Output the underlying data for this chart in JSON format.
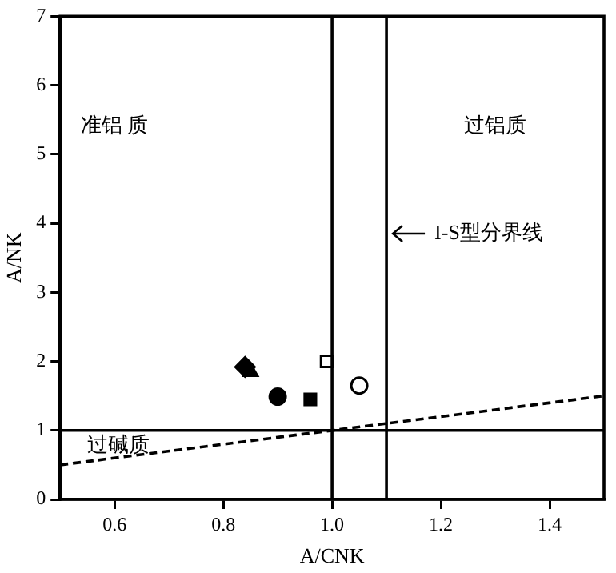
{
  "chart_data": {
    "type": "scatter",
    "xlabel": "A/CNK",
    "ylabel": "A/NK",
    "xlim": [
      0.5,
      1.5
    ],
    "xticks": [
      {
        "value": 0.6,
        "label": "0.6"
      },
      {
        "value": 0.8,
        "label": "0.8"
      },
      {
        "value": 1.0,
        "label": "1.0"
      },
      {
        "value": 1.2,
        "label": "1.2"
      },
      {
        "value": 1.4,
        "label": "1.4"
      }
    ],
    "ylim": [
      0,
      7
    ],
    "yticks": [
      0,
      1,
      2,
      3,
      4,
      5,
      6,
      7
    ],
    "grid": false,
    "legend": false,
    "series": [
      {
        "type": "scatter",
        "marker": "diamond",
        "color": "#000000",
        "x": [
          0.84
        ],
        "values": [
          1.92
        ]
      },
      {
        "type": "scatter",
        "marker": "triangle",
        "color": "#000000",
        "x": [
          0.85
        ],
        "values": [
          1.85
        ]
      },
      {
        "type": "scatter",
        "marker": "circle",
        "color": "#000000",
        "x": [
          0.9
        ],
        "values": [
          1.49
        ]
      },
      {
        "type": "scatter",
        "marker": "square",
        "color": "#000000",
        "x": [
          0.96
        ],
        "values": [
          1.45
        ]
      },
      {
        "type": "scatter",
        "marker": "square",
        "color": "#ffffff",
        "x": [
          0.99
        ],
        "values": [
          2.0
        ]
      },
      {
        "type": "scatter",
        "marker": "circle",
        "color": "#ffffff",
        "x": [
          1.05
        ],
        "values": [
          1.65
        ]
      },
      {
        "type": "line",
        "marker": "none",
        "line_style": "dashed",
        "color": "#000000",
        "x": [
          0.5,
          1.5
        ],
        "values": [
          0.5,
          1.5
        ]
      }
    ],
    "ref_lines": [
      {
        "axis": "x",
        "value": 1.0,
        "label": null
      },
      {
        "axis": "x",
        "value": 1.1,
        "label": "I-S型分界线"
      },
      {
        "axis": "y",
        "value": 1,
        "label": null
      }
    ],
    "annotations": [
      "准铝 质",
      "过铝质",
      "过碱质"
    ]
  }
}
